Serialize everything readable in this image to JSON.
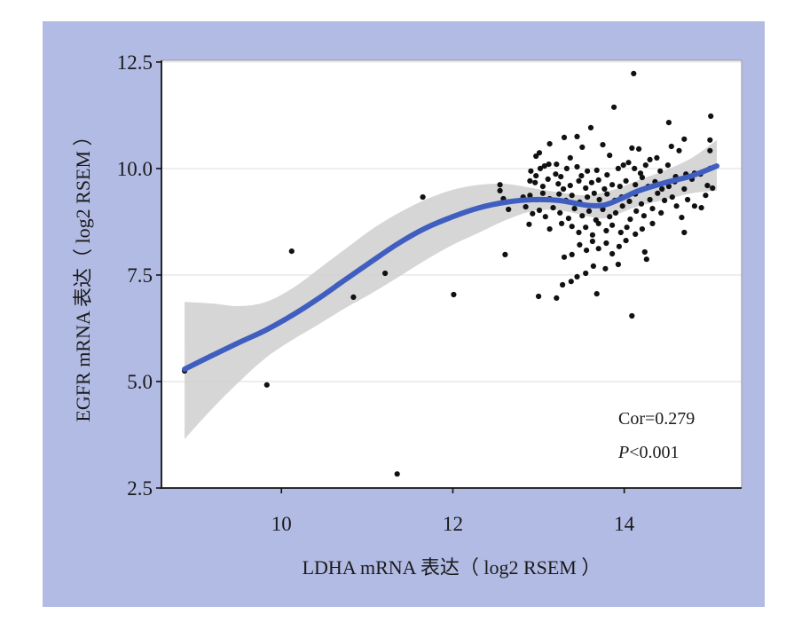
{
  "chart_data": {
    "type": "scatter",
    "xlabel": "LDHA mRNA 表达（ log2 RSEM ）",
    "ylabel": "EGFR mRNA 表达（ log2 RSEM ）",
    "xlim": [
      8.6,
      15.37
    ],
    "ylim": [
      2.5,
      12.54
    ],
    "xticks": [
      10,
      12,
      14
    ],
    "xtick_labels": [
      "10",
      "12",
      "14"
    ],
    "yticks": [
      2.5,
      5,
      7.5,
      10,
      12.5
    ],
    "ytick_labels": [
      "2.5",
      "5.0",
      "7.5",
      "10.0",
      "12.5"
    ],
    "grid": {
      "y_major": true,
      "x_major": false
    },
    "points": [
      [
        8.87,
        5.25
      ],
      [
        9.83,
        4.92
      ],
      [
        10.12,
        8.06
      ],
      [
        10.84,
        6.98
      ],
      [
        11.21,
        7.54
      ],
      [
        11.35,
        2.83
      ],
      [
        11.65,
        9.33
      ],
      [
        12.01,
        7.04
      ],
      [
        12.55,
        9.48
      ],
      [
        12.55,
        9.62
      ],
      [
        12.59,
        9.29
      ],
      [
        12.61,
        7.98
      ],
      [
        12.65,
        9.04
      ],
      [
        14.11,
        12.23
      ],
      [
        13.88,
        11.44
      ],
      [
        15.01,
        11.23
      ],
      [
        14.52,
        11.08
      ],
      [
        12.97,
        10.29
      ],
      [
        13.01,
        10.37
      ],
      [
        13.13,
        10.58
      ],
      [
        13.3,
        10.73
      ],
      [
        13.45,
        10.75
      ],
      [
        13.07,
        10.06
      ],
      [
        13.21,
        10.1
      ],
      [
        13.37,
        10.25
      ],
      [
        13.51,
        10.5
      ],
      [
        13.61,
        10.96
      ],
      [
        13.75,
        10.56
      ],
      [
        13.83,
        10.31
      ],
      [
        14.09,
        10.48
      ],
      [
        14.17,
        10.46
      ],
      [
        14.3,
        10.21
      ],
      [
        14.38,
        10.25
      ],
      [
        14.64,
        10.42
      ],
      [
        14.7,
        10.69
      ],
      [
        15.0,
        10.67
      ],
      [
        15.0,
        10.42
      ],
      [
        14.55,
        10.52
      ],
      [
        12.91,
        9.94
      ],
      [
        12.97,
        9.83
      ],
      [
        13.02,
        10.0
      ],
      [
        13.12,
        10.1
      ],
      [
        13.2,
        9.87
      ],
      [
        13.26,
        9.81
      ],
      [
        13.33,
        10.0
      ],
      [
        13.45,
        10.04
      ],
      [
        13.5,
        9.83
      ],
      [
        13.57,
        9.94
      ],
      [
        13.68,
        9.96
      ],
      [
        13.8,
        9.85
      ],
      [
        13.93,
        10.0
      ],
      [
        13.99,
        10.08
      ],
      [
        14.05,
        10.14
      ],
      [
        14.12,
        10.0
      ],
      [
        14.19,
        9.89
      ],
      [
        14.25,
        10.08
      ],
      [
        14.42,
        9.94
      ],
      [
        14.51,
        10.08
      ],
      [
        14.6,
        9.81
      ],
      [
        14.72,
        9.87
      ],
      [
        14.82,
        9.89
      ],
      [
        14.89,
        9.87
      ],
      [
        15.0,
        10.0
      ],
      [
        12.9,
        9.71
      ],
      [
        12.96,
        9.67
      ],
      [
        13.05,
        9.58
      ],
      [
        13.11,
        9.75
      ],
      [
        13.23,
        9.64
      ],
      [
        13.29,
        9.52
      ],
      [
        13.37,
        9.6
      ],
      [
        13.47,
        9.71
      ],
      [
        13.55,
        9.54
      ],
      [
        13.62,
        9.67
      ],
      [
        13.7,
        9.73
      ],
      [
        13.77,
        9.52
      ],
      [
        13.86,
        9.62
      ],
      [
        13.95,
        9.58
      ],
      [
        14.02,
        9.71
      ],
      [
        14.13,
        9.62
      ],
      [
        14.21,
        9.79
      ],
      [
        14.28,
        9.58
      ],
      [
        14.36,
        9.69
      ],
      [
        14.44,
        9.52
      ],
      [
        14.52,
        9.58
      ],
      [
        14.59,
        9.69
      ],
      [
        14.7,
        9.52
      ],
      [
        14.79,
        9.75
      ],
      [
        14.97,
        9.6
      ],
      [
        15.03,
        9.54
      ],
      [
        12.82,
        9.33
      ],
      [
        12.9,
        9.37
      ],
      [
        12.98,
        9.27
      ],
      [
        13.05,
        9.42
      ],
      [
        13.13,
        9.29
      ],
      [
        13.24,
        9.4
      ],
      [
        13.32,
        9.25
      ],
      [
        13.39,
        9.37
      ],
      [
        13.48,
        9.21
      ],
      [
        13.57,
        9.33
      ],
      [
        13.65,
        9.42
      ],
      [
        13.71,
        9.27
      ],
      [
        13.8,
        9.4
      ],
      [
        13.89,
        9.25
      ],
      [
        13.97,
        9.33
      ],
      [
        14.06,
        9.23
      ],
      [
        14.13,
        9.4
      ],
      [
        14.2,
        9.17
      ],
      [
        14.3,
        9.27
      ],
      [
        14.39,
        9.42
      ],
      [
        14.47,
        9.25
      ],
      [
        14.56,
        9.33
      ],
      [
        14.74,
        9.27
      ],
      [
        14.95,
        9.37
      ],
      [
        12.85,
        9.1
      ],
      [
        12.93,
        8.94
      ],
      [
        13.01,
        9.02
      ],
      [
        13.08,
        8.87
      ],
      [
        13.17,
        9.08
      ],
      [
        13.25,
        8.96
      ],
      [
        13.35,
        8.83
      ],
      [
        13.42,
        9.06
      ],
      [
        13.51,
        8.89
      ],
      [
        13.59,
        9.0
      ],
      [
        13.67,
        8.79
      ],
      [
        13.75,
        9.04
      ],
      [
        13.83,
        8.87
      ],
      [
        13.9,
        8.96
      ],
      [
        13.98,
        9.12
      ],
      [
        14.07,
        8.81
      ],
      [
        14.14,
        9.0
      ],
      [
        14.23,
        8.89
      ],
      [
        14.33,
        9.06
      ],
      [
        14.43,
        8.96
      ],
      [
        14.61,
        9.12
      ],
      [
        14.82,
        9.12
      ],
      [
        14.9,
        9.08
      ],
      [
        14.67,
        8.85
      ],
      [
        12.89,
        8.69
      ],
      [
        13.13,
        8.58
      ],
      [
        13.27,
        8.71
      ],
      [
        13.39,
        8.64
      ],
      [
        13.47,
        8.5
      ],
      [
        13.55,
        8.62
      ],
      [
        13.63,
        8.44
      ],
      [
        13.7,
        8.71
      ],
      [
        13.79,
        8.54
      ],
      [
        13.86,
        8.67
      ],
      [
        13.96,
        8.5
      ],
      [
        14.03,
        8.62
      ],
      [
        14.13,
        8.46
      ],
      [
        14.21,
        8.58
      ],
      [
        14.7,
        8.5
      ],
      [
        14.33,
        8.71
      ],
      [
        13.3,
        7.92
      ],
      [
        13.39,
        7.98
      ],
      [
        13.48,
        8.21
      ],
      [
        13.56,
        8.08
      ],
      [
        13.63,
        8.29
      ],
      [
        13.7,
        8.12
      ],
      [
        13.79,
        8.25
      ],
      [
        13.86,
        8.0
      ],
      [
        13.94,
        8.17
      ],
      [
        14.24,
        8.04
      ],
      [
        14.26,
        7.87
      ],
      [
        13.93,
        7.75
      ],
      [
        13.78,
        7.65
      ],
      [
        13.64,
        7.71
      ],
      [
        14.02,
        8.31
      ],
      [
        13.0,
        7.0
      ],
      [
        13.21,
        6.96
      ],
      [
        13.28,
        7.27
      ],
      [
        13.38,
        7.35
      ],
      [
        13.45,
        7.46
      ],
      [
        13.68,
        7.06
      ],
      [
        13.55,
        7.54
      ],
      [
        14.09,
        6.54
      ]
    ],
    "smooth": {
      "x": [
        8.87,
        9.2,
        9.51,
        9.82,
        10.13,
        10.44,
        10.75,
        11.06,
        11.37,
        11.68,
        12.0,
        12.31,
        12.62,
        12.93,
        13.24,
        13.55,
        13.76,
        13.96,
        14.17,
        14.48,
        14.79,
        15.08
      ],
      "y": [
        5.29,
        5.62,
        5.92,
        6.21,
        6.56,
        6.96,
        7.4,
        7.83,
        8.25,
        8.6,
        8.87,
        9.08,
        9.21,
        9.27,
        9.25,
        9.14,
        9.14,
        9.29,
        9.48,
        9.67,
        9.83,
        10.06
      ],
      "lower": [
        3.65,
        4.38,
        5.0,
        5.56,
        5.98,
        6.35,
        6.73,
        7.08,
        7.46,
        7.85,
        8.21,
        8.5,
        8.79,
        9.0,
        9.02,
        8.89,
        8.83,
        8.96,
        9.12,
        9.27,
        9.42,
        9.48
      ],
      "upper": [
        6.87,
        6.83,
        6.77,
        6.87,
        7.19,
        7.65,
        8.12,
        8.58,
        8.96,
        9.27,
        9.5,
        9.62,
        9.64,
        9.54,
        9.44,
        9.37,
        9.44,
        9.56,
        9.73,
        9.96,
        10.25,
        10.67
      ]
    },
    "annotation": {
      "cor": "Cor=0.279",
      "p_symbol": "P",
      "p_rest": "<0.001"
    }
  },
  "colors": {
    "figure_background": "#b2bbe4",
    "panel": "#ffffff",
    "grid": "#e2e2e2",
    "points": "#111111",
    "smooth_line": "#3f5ec0",
    "confidence_band": "#cfcfcf"
  }
}
